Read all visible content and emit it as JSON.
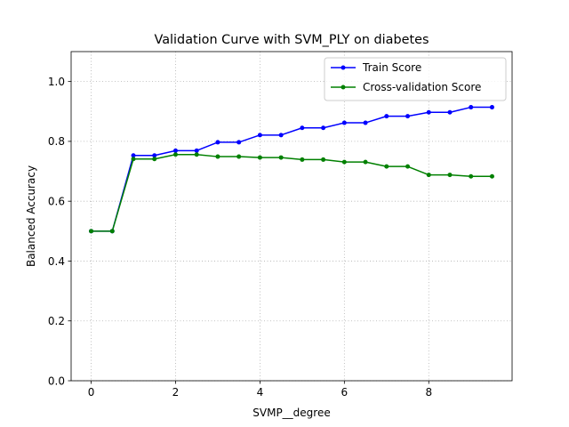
{
  "chart_data": {
    "type": "line",
    "title": "Validation Curve with SVM_PLY on diabetes",
    "xlabel": "SVMP__degree",
    "ylabel": "Balanced Accuracy",
    "xlim": [
      -0.475,
      9.975
    ],
    "ylim": [
      0.0,
      1.1
    ],
    "xticks": [
      0,
      2,
      4,
      6,
      8
    ],
    "xtick_labels": [
      "0",
      "2",
      "4",
      "6",
      "8"
    ],
    "yticks": [
      0.0,
      0.2,
      0.4,
      0.6,
      0.8,
      1.0
    ],
    "ytick_labels": [
      "0.0",
      "0.2",
      "0.4",
      "0.6",
      "0.8",
      "1.0"
    ],
    "grid": true,
    "legend_position": "top-right",
    "x": [
      0,
      0.5,
      1,
      1.5,
      2,
      2.5,
      3,
      3.5,
      4,
      4.5,
      5,
      5.5,
      6,
      6.5,
      7,
      7.5,
      8,
      8.5,
      9,
      9.5
    ],
    "series": [
      {
        "name": "Train Score",
        "color": "#0000ff",
        "values": [
          0.5,
          0.5,
          0.753,
          0.753,
          0.769,
          0.769,
          0.797,
          0.797,
          0.821,
          0.821,
          0.845,
          0.845,
          0.862,
          0.862,
          0.884,
          0.884,
          0.897,
          0.897,
          0.914,
          0.914
        ]
      },
      {
        "name": "Cross-validation Score",
        "color": "#008000",
        "values": [
          0.5,
          0.5,
          0.741,
          0.741,
          0.756,
          0.756,
          0.749,
          0.749,
          0.746,
          0.746,
          0.739,
          0.739,
          0.731,
          0.731,
          0.716,
          0.716,
          0.688,
          0.688,
          0.683,
          0.683
        ]
      }
    ]
  }
}
